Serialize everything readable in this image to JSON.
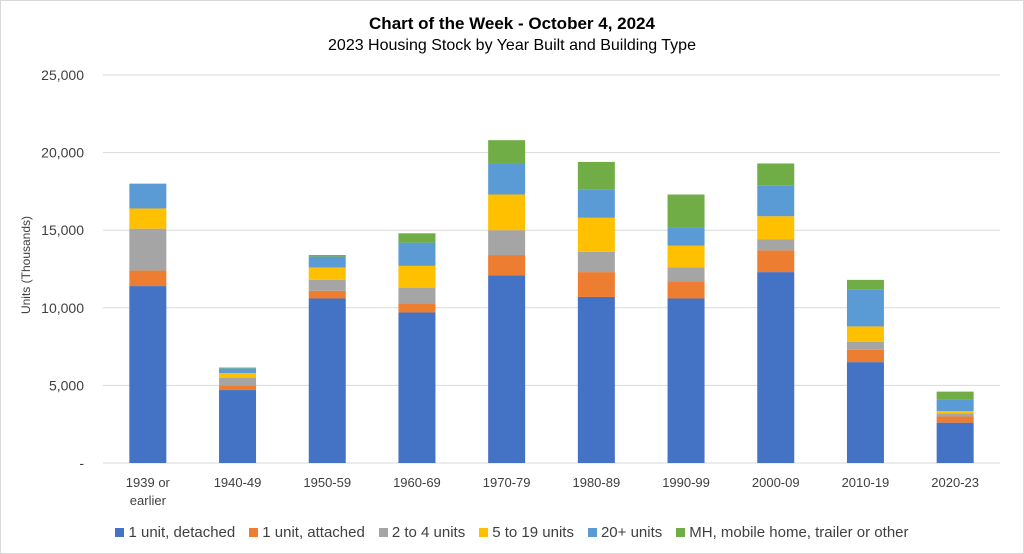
{
  "title": "Chart of the Week - October 4, 2024",
  "subtitle": "2023 Housing Stock by Year Built and Building Type",
  "chart_data": {
    "type": "bar",
    "stacked": true,
    "title": "Chart of the Week - October 4, 2024",
    "subtitle": "2023 Housing Stock by Year Built and Building Type",
    "xlabel": "",
    "ylabel": "Units (Thousands)",
    "ylim": [
      0,
      25000
    ],
    "yticks": [
      0,
      5000,
      10000,
      15000,
      20000,
      25000
    ],
    "ytick_labels": [
      "-",
      "5,000",
      "10,000",
      "15,000",
      "20,000",
      "25,000"
    ],
    "grid": true,
    "legend_position": "bottom",
    "categories": [
      "1939 or earlier",
      "1940-49",
      "1950-59",
      "1960-69",
      "1970-79",
      "1980-89",
      "1990-99",
      "2000-09",
      "2010-19",
      "2020-23"
    ],
    "series": [
      {
        "name": "1 unit, detached",
        "color": "#4472C4",
        "values": [
          11400,
          4700,
          10600,
          9700,
          12100,
          10700,
          10600,
          12300,
          6500,
          2600
        ]
      },
      {
        "name": "1 unit, attached",
        "color": "#ED7D31",
        "values": [
          1000,
          300,
          500,
          600,
          1300,
          1600,
          1100,
          1400,
          800,
          400
        ]
      },
      {
        "name": "2 to 4 units",
        "color": "#A5A5A5",
        "values": [
          2700,
          500,
          700,
          1000,
          1600,
          1300,
          900,
          700,
          500,
          200
        ]
      },
      {
        "name": "5 to 19 units",
        "color": "#FFC000",
        "values": [
          1300,
          300,
          800,
          1400,
          2300,
          2200,
          1400,
          1500,
          1000,
          150
        ]
      },
      {
        "name": "20+ units",
        "color": "#5B9BD5",
        "values": [
          1600,
          300,
          700,
          1500,
          2000,
          1800,
          1200,
          2000,
          2400,
          750
        ]
      },
      {
        "name": "MH, mobile home, trailer or other",
        "color": "#70AD47",
        "values": [
          0,
          50,
          100,
          600,
          1500,
          1800,
          2100,
          1400,
          600,
          500
        ]
      }
    ]
  }
}
